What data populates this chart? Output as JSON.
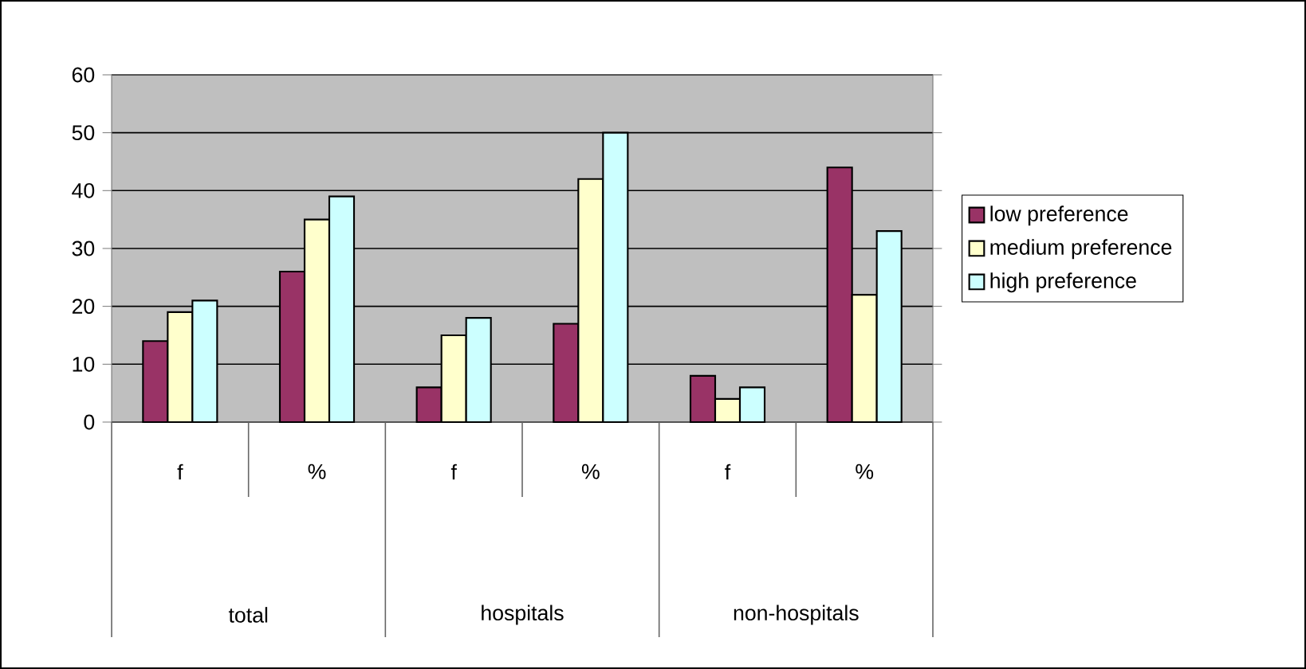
{
  "chart_data": {
    "type": "bar",
    "categories": [
      "f",
      "%",
      "f",
      "%",
      "f",
      "%"
    ],
    "series": [
      {
        "name": "low preference",
        "color": "#993366",
        "values": [
          14,
          26,
          6,
          17,
          8,
          44
        ]
      },
      {
        "name": "medium preference",
        "color": "#ffffcc",
        "values": [
          19,
          35,
          15,
          42,
          4,
          22
        ]
      },
      {
        "name": "high preference",
        "color": "#ccffff",
        "values": [
          21,
          39,
          18,
          50,
          6,
          33
        ]
      }
    ],
    "annotations": [
      "total",
      "hospitals",
      "non-hospitals"
    ],
    "ylim": [
      0,
      60
    ],
    "yticks": [
      0,
      10,
      20,
      30,
      40,
      50,
      60
    ],
    "grid": "y",
    "legend": "right"
  }
}
